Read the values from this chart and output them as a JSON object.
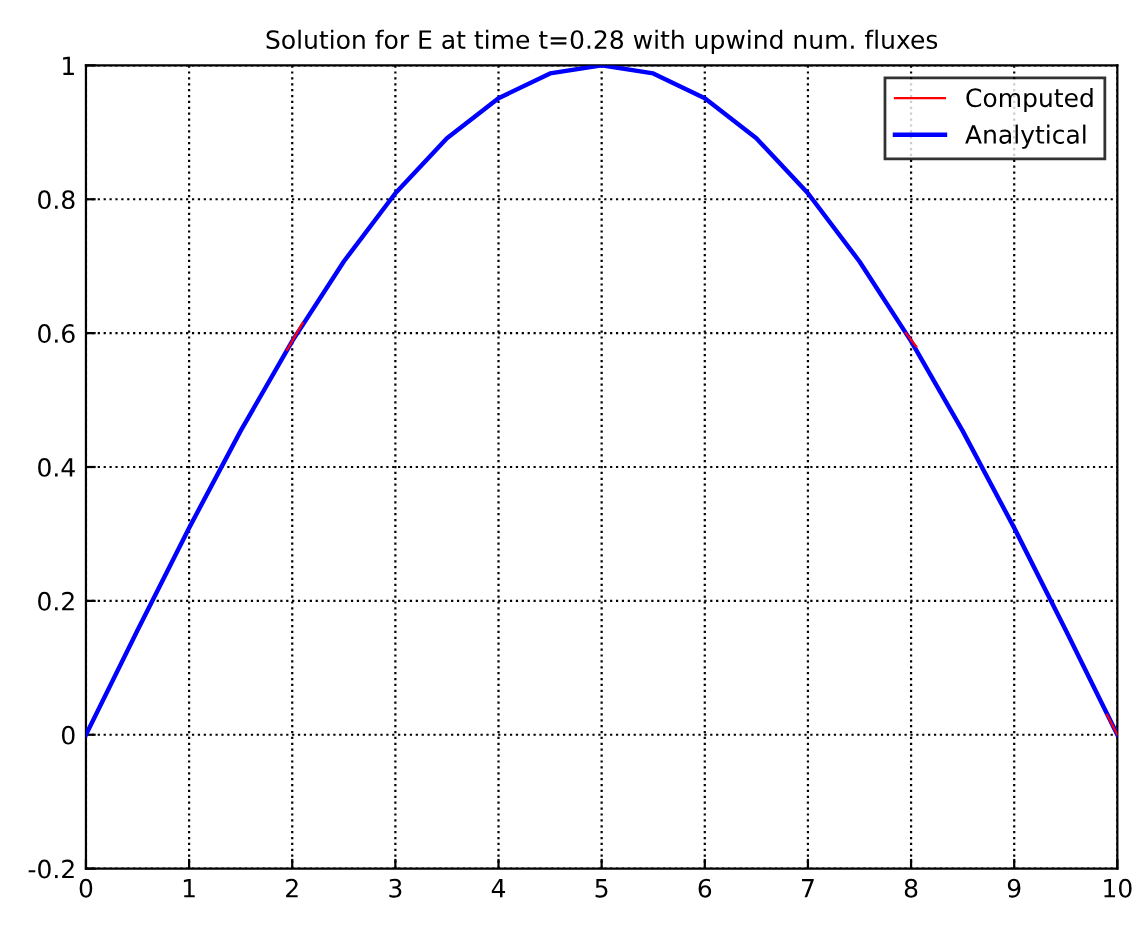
{
  "chart_data": {
    "type": "line",
    "title": "Solution for E at time t=0.28 with upwind num. fluxes",
    "x": [
      0,
      0.5,
      1,
      1.5,
      2,
      2.5,
      3,
      3.5,
      4,
      4.5,
      5,
      5.5,
      6,
      6.5,
      7,
      7.5,
      8,
      8.5,
      9,
      9.5,
      10
    ],
    "series": [
      {
        "name": "Computed",
        "color": "#ff0000",
        "x": [
          1.95,
          2.1,
          5,
          7.95,
          8.05,
          9,
          9.9,
          10
        ],
        "values": [
          0.575,
          0.615,
          null,
          0.6,
          0.58,
          null,
          0.03,
          0
        ]
      },
      {
        "name": "Analytical",
        "color": "#0000ff",
        "values": [
          0,
          0.156,
          0.309,
          0.454,
          0.588,
          0.707,
          0.809,
          0.891,
          0.951,
          0.988,
          1,
          0.988,
          0.951,
          0.891,
          0.809,
          0.707,
          0.588,
          0.454,
          0.309,
          0.156,
          0
        ]
      }
    ],
    "xlim": [
      0,
      10
    ],
    "xticks": [
      0,
      1,
      2,
      3,
      4,
      5,
      6,
      7,
      8,
      9,
      10
    ],
    "ylim": [
      -0.2,
      1
    ],
    "yticks": [
      -0.2,
      0,
      0.2,
      0.4,
      0.6,
      0.8,
      1
    ],
    "grid": true,
    "legend": "top right",
    "line_style": "solid",
    "marker": "none"
  }
}
